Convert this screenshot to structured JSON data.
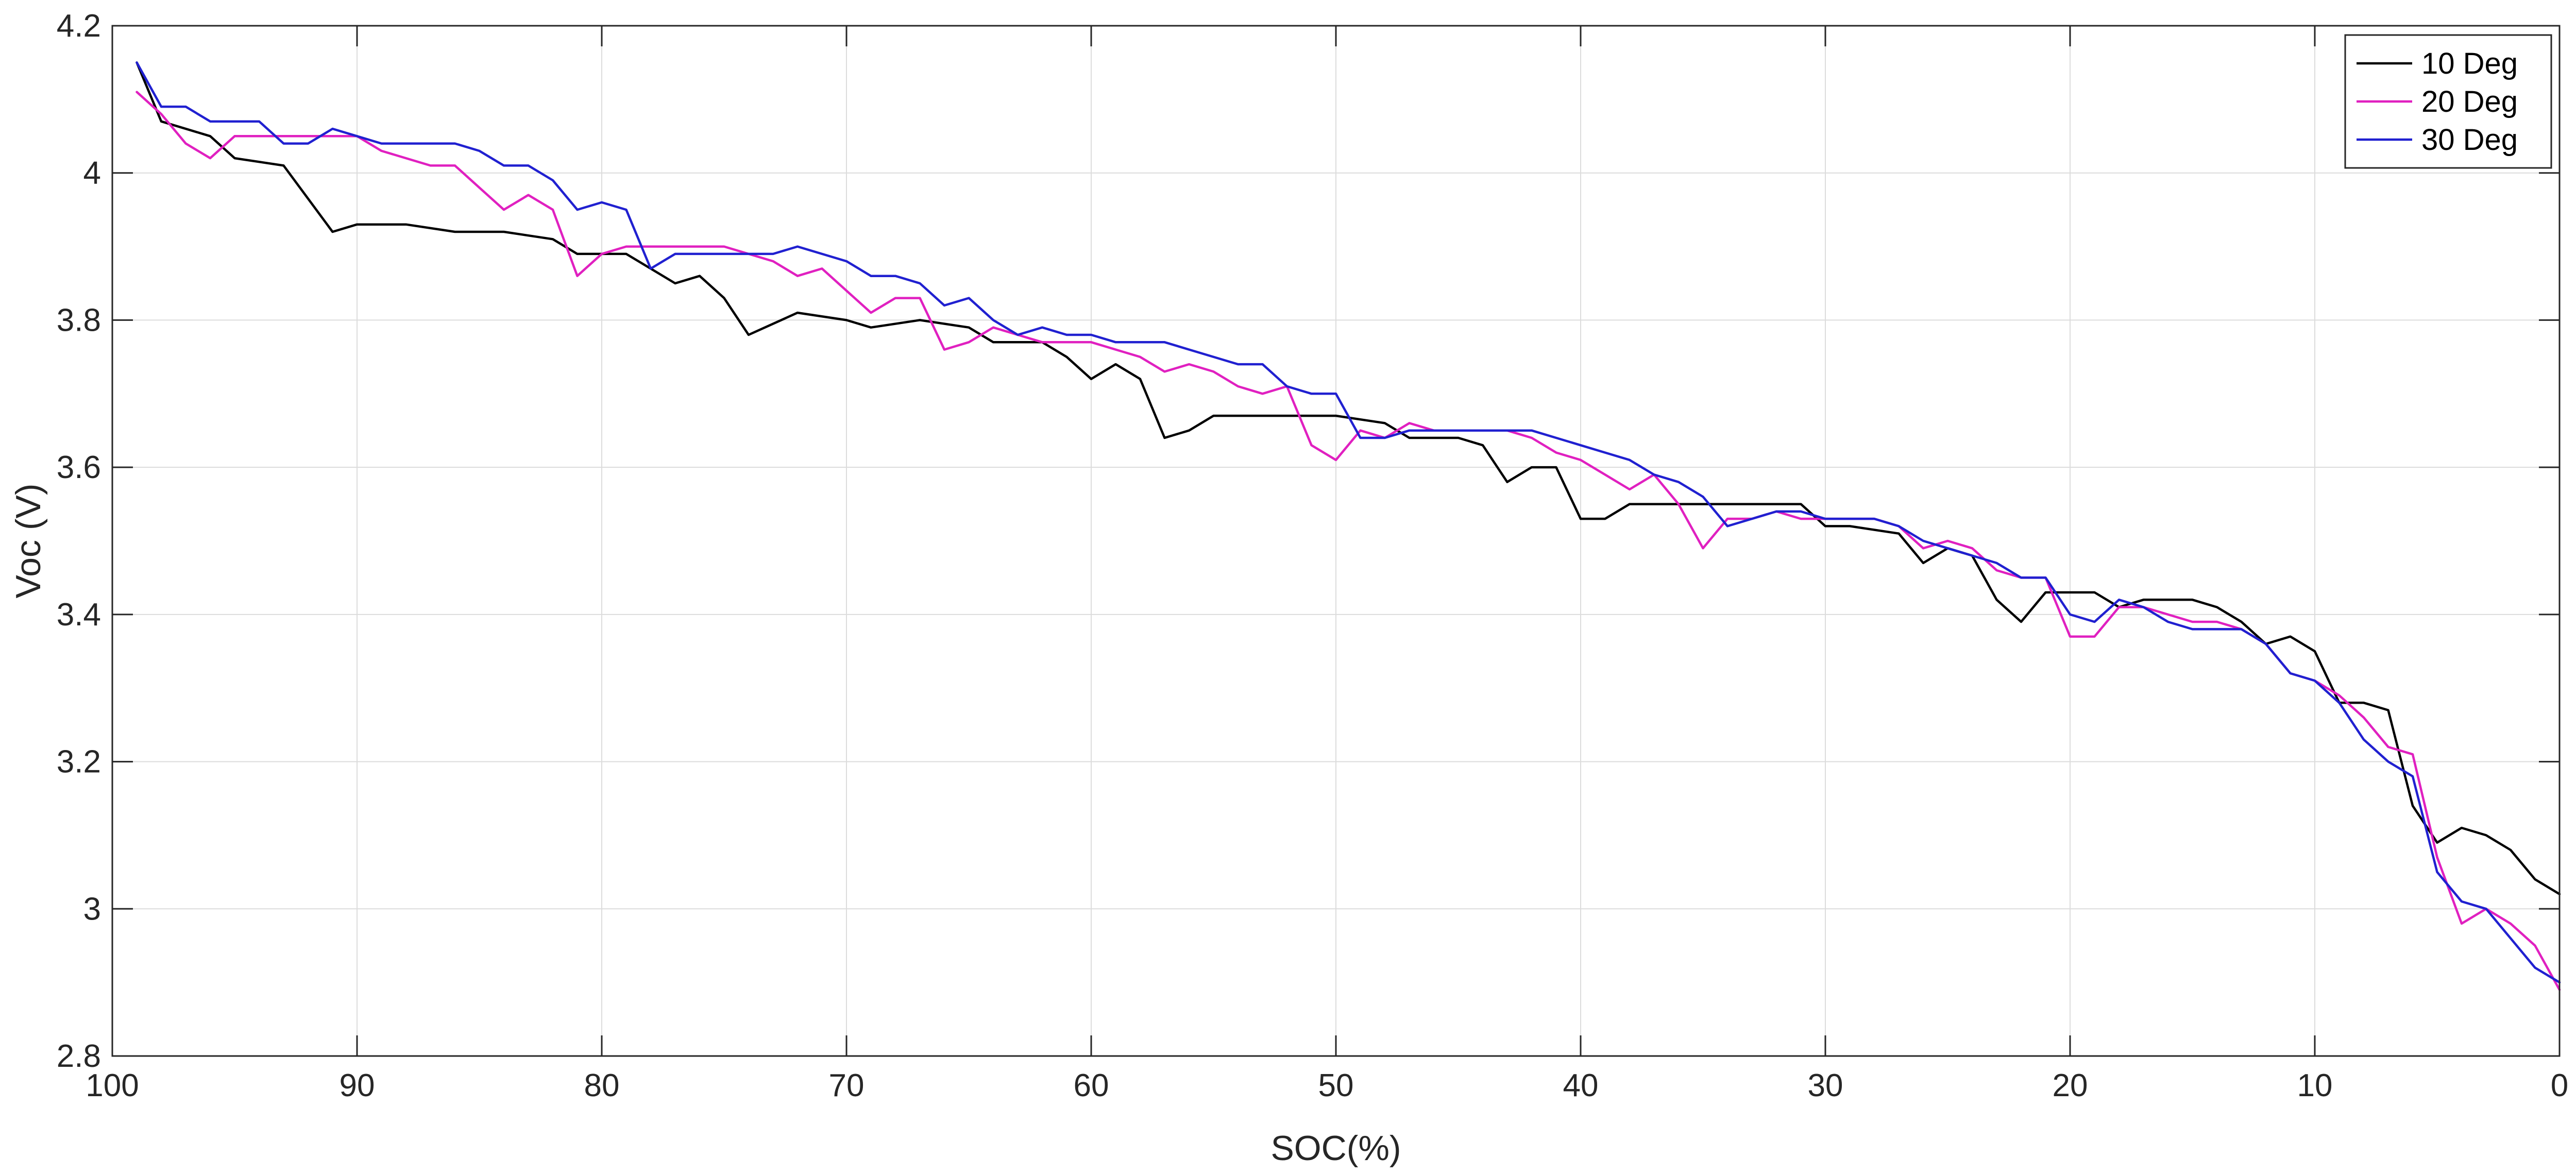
{
  "chart_data": {
    "type": "line",
    "title": "",
    "xlabel": "SOC(%)",
    "ylabel": "Voc (V)",
    "xlim": [
      100,
      0
    ],
    "x_reversed": true,
    "ylim": [
      2.8,
      4.2
    ],
    "xticks": [
      100,
      90,
      80,
      70,
      60,
      50,
      40,
      30,
      20,
      10,
      0
    ],
    "yticks": [
      2.8,
      3,
      3.2,
      3.4,
      3.6,
      3.8,
      4,
      4.2
    ],
    "xtick_labels": [
      "100",
      "90",
      "80",
      "70",
      "60",
      "50",
      "40",
      "30",
      "20",
      "10",
      "0"
    ],
    "ytick_labels": [
      "2.8",
      "3",
      "3.2",
      "3.4",
      "3.6",
      "3.8",
      "4",
      "4.2"
    ],
    "grid": true,
    "legend_position": "top-right",
    "series": [
      {
        "name": "10 Deg",
        "color": "#000000",
        "x": [
          99,
          98,
          96,
          95,
          93,
          91,
          90,
          88,
          86,
          84,
          82,
          81,
          79,
          77,
          76,
          75,
          74,
          72,
          70,
          69,
          67,
          65,
          64,
          62,
          61,
          60,
          59,
          58,
          57,
          56,
          55,
          53,
          51,
          50,
          48,
          47,
          45,
          44,
          43,
          42,
          41,
          40,
          39,
          38,
          36,
          35,
          32,
          31,
          30,
          29,
          27,
          26,
          25,
          24,
          23,
          22,
          21,
          20,
          19,
          18,
          17,
          15,
          14,
          13,
          12,
          11,
          10,
          9,
          8,
          7,
          6,
          5,
          4,
          3,
          2,
          1,
          0
        ],
        "y": [
          4.15,
          4.07,
          4.05,
          4.02,
          4.01,
          3.92,
          3.93,
          3.93,
          3.92,
          3.92,
          3.91,
          3.89,
          3.89,
          3.85,
          3.86,
          3.83,
          3.78,
          3.81,
          3.8,
          3.79,
          3.8,
          3.79,
          3.77,
          3.77,
          3.75,
          3.72,
          3.74,
          3.72,
          3.64,
          3.65,
          3.67,
          3.67,
          3.67,
          3.67,
          3.66,
          3.64,
          3.64,
          3.63,
          3.58,
          3.6,
          3.6,
          3.53,
          3.53,
          3.55,
          3.55,
          3.55,
          3.55,
          3.55,
          3.52,
          3.52,
          3.51,
          3.47,
          3.49,
          3.48,
          3.42,
          3.39,
          3.43,
          3.43,
          3.43,
          3.41,
          3.42,
          3.42,
          3.41,
          3.39,
          3.36,
          3.37,
          3.35,
          3.28,
          3.28,
          3.27,
          3.14,
          3.09,
          3.11,
          3.1,
          3.08,
          3.04,
          3.02
        ]
      },
      {
        "name": "20 Deg",
        "color": "#e020c0",
        "x": [
          99,
          98,
          97,
          96,
          95,
          94,
          93,
          92,
          91,
          90,
          89,
          88,
          87,
          86,
          85,
          84,
          83,
          82,
          81,
          80,
          79,
          77,
          75,
          73,
          72,
          71,
          70,
          69,
          68,
          67,
          66,
          65,
          64,
          63,
          62,
          61,
          60,
          59,
          58,
          57,
          56,
          55,
          54,
          53,
          52,
          51,
          50,
          49,
          48,
          47,
          46,
          45,
          44,
          43,
          42,
          41,
          40,
          39,
          38,
          37,
          36,
          35,
          34,
          33,
          32,
          31,
          30,
          29,
          28,
          27,
          26,
          25,
          24,
          23,
          22,
          21,
          20,
          19,
          18,
          17,
          16,
          15,
          14,
          13,
          12,
          11,
          10,
          9,
          8,
          7,
          6,
          5,
          4,
          3,
          2,
          1,
          0
        ],
        "y": [
          4.11,
          4.08,
          4.04,
          4.02,
          4.05,
          4.05,
          4.05,
          4.05,
          4.05,
          4.05,
          4.03,
          4.02,
          4.01,
          4.01,
          3.98,
          3.95,
          3.97,
          3.95,
          3.86,
          3.89,
          3.9,
          3.9,
          3.9,
          3.88,
          3.86,
          3.87,
          3.84,
          3.81,
          3.83,
          3.83,
          3.76,
          3.77,
          3.79,
          3.78,
          3.77,
          3.77,
          3.77,
          3.76,
          3.75,
          3.73,
          3.74,
          3.73,
          3.71,
          3.7,
          3.71,
          3.63,
          3.61,
          3.65,
          3.64,
          3.66,
          3.65,
          3.65,
          3.65,
          3.65,
          3.64,
          3.62,
          3.61,
          3.59,
          3.57,
          3.59,
          3.55,
          3.49,
          3.53,
          3.53,
          3.54,
          3.53,
          3.53,
          3.53,
          3.53,
          3.52,
          3.49,
          3.5,
          3.49,
          3.46,
          3.45,
          3.45,
          3.37,
          3.37,
          3.41,
          3.41,
          3.4,
          3.39,
          3.39,
          3.38,
          3.36,
          3.32,
          3.31,
          3.29,
          3.26,
          3.22,
          3.21,
          3.07,
          2.98,
          3.0,
          2.98,
          2.95,
          2.89
        ]
      },
      {
        "name": "30 Deg",
        "color": "#2020d0",
        "x": [
          99,
          98,
          97,
          96,
          95,
          94,
          93,
          92,
          91,
          90,
          89,
          88,
          87,
          86,
          85,
          84,
          83,
          82,
          81,
          80,
          79,
          78,
          77,
          76,
          75,
          74,
          73,
          72,
          71,
          70,
          69,
          68,
          67,
          66,
          65,
          64,
          63,
          62,
          61,
          60,
          59,
          58,
          57,
          56,
          55,
          54,
          53,
          52,
          51,
          50,
          49,
          48,
          47,
          46,
          45,
          44,
          43,
          42,
          41,
          40,
          39,
          38,
          37,
          36,
          35,
          34,
          33,
          32,
          31,
          30,
          29,
          28,
          27,
          26,
          25,
          24,
          23,
          22,
          21,
          20,
          19,
          18,
          17,
          16,
          15,
          14,
          13,
          12,
          11,
          10,
          9,
          8,
          7,
          6,
          5,
          4,
          3,
          2,
          1,
          0
        ],
        "y": [
          4.15,
          4.09,
          4.09,
          4.07,
          4.07,
          4.07,
          4.04,
          4.04,
          4.06,
          4.05,
          4.04,
          4.04,
          4.04,
          4.04,
          4.03,
          4.01,
          4.01,
          3.99,
          3.95,
          3.96,
          3.95,
          3.87,
          3.89,
          3.89,
          3.89,
          3.89,
          3.89,
          3.9,
          3.89,
          3.88,
          3.86,
          3.86,
          3.85,
          3.82,
          3.83,
          3.8,
          3.78,
          3.79,
          3.78,
          3.78,
          3.77,
          3.77,
          3.77,
          3.76,
          3.75,
          3.74,
          3.74,
          3.71,
          3.7,
          3.7,
          3.64,
          3.64,
          3.65,
          3.65,
          3.65,
          3.65,
          3.65,
          3.65,
          3.64,
          3.63,
          3.62,
          3.61,
          3.59,
          3.58,
          3.56,
          3.52,
          3.53,
          3.54,
          3.54,
          3.53,
          3.53,
          3.53,
          3.52,
          3.5,
          3.49,
          3.48,
          3.47,
          3.45,
          3.45,
          3.4,
          3.39,
          3.42,
          3.41,
          3.39,
          3.38,
          3.38,
          3.38,
          3.36,
          3.32,
          3.31,
          3.28,
          3.23,
          3.2,
          3.18,
          3.05,
          3.01,
          3.0,
          2.96,
          2.92,
          2.9
        ]
      }
    ]
  }
}
